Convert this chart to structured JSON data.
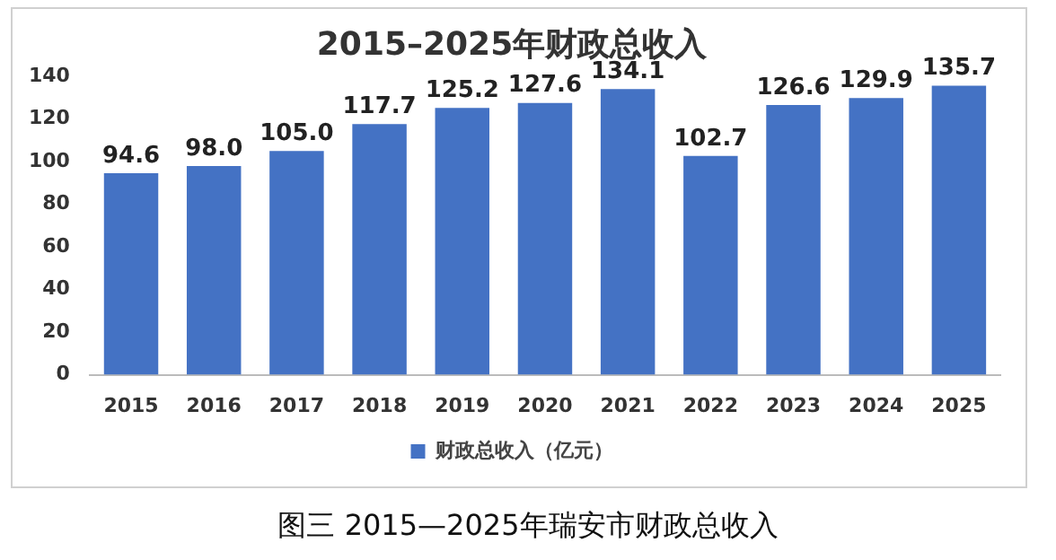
{
  "chart_data": {
    "type": "bar",
    "title": "2015–2025年财政总收入",
    "categories": [
      "2015",
      "2016",
      "2017",
      "2018",
      "2019",
      "2020",
      "2021",
      "2022",
      "2023",
      "2024",
      "2025"
    ],
    "series": [
      {
        "name": "财政总收入（亿元）",
        "color": "#4472c4",
        "values": [
          94.6,
          98.0,
          105.0,
          117.7,
          125.2,
          127.6,
          134.1,
          102.7,
          126.6,
          129.9,
          135.7
        ]
      }
    ],
    "value_labels": [
      "94.6",
      "98.0",
      "105.0",
      "117.7",
      "125.2",
      "127.6",
      "134.1",
      "102.7",
      "126.6",
      "129.9",
      "135.7"
    ],
    "ylim": [
      0,
      140
    ],
    "yticks": [
      0,
      20,
      40,
      60,
      80,
      100,
      120,
      140
    ],
    "grid": false,
    "legend": "bottom",
    "annotations": [
      "图三 2015—2025年瑞安市财政总收入"
    ]
  }
}
